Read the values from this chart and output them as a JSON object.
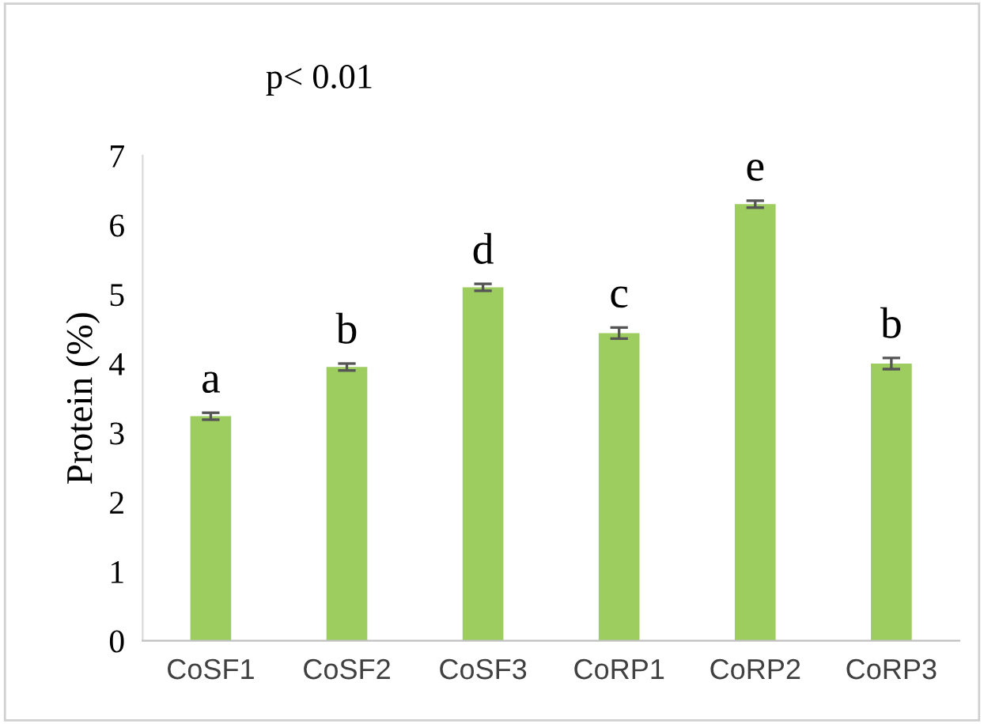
{
  "chart_data": {
    "type": "bar",
    "ylabel": "Protein (%)",
    "categories": [
      "CoSF1",
      "CoSF2",
      "CoSF3",
      "CoRP1",
      "CoRP2",
      "CoRP3"
    ],
    "values": [
      3.24,
      3.95,
      5.1,
      4.44,
      6.3,
      4.0
    ],
    "errors": [
      0.05,
      0.05,
      0.05,
      0.08,
      0.05,
      0.08
    ],
    "color": "#9dcc5f",
    "ylim": [
      0,
      7
    ],
    "yticks": [
      0,
      1,
      2,
      3,
      4,
      5,
      6,
      7
    ],
    "grid": false,
    "annotations": [
      "p< 0.01",
      {
        "text": "a",
        "x": "CoSF1",
        "y": 3.24
      },
      {
        "text": "b",
        "x": "CoSF2",
        "y": 3.95
      },
      {
        "text": "d",
        "x": "CoSF3",
        "y": 5.1
      },
      {
        "text": "c",
        "x": "CoRP1",
        "y": 4.44
      },
      {
        "text": "e",
        "x": "CoRP2",
        "y": 6.3
      },
      {
        "text": "b",
        "x": "CoRP3",
        "y": 4.0
      }
    ]
  }
}
